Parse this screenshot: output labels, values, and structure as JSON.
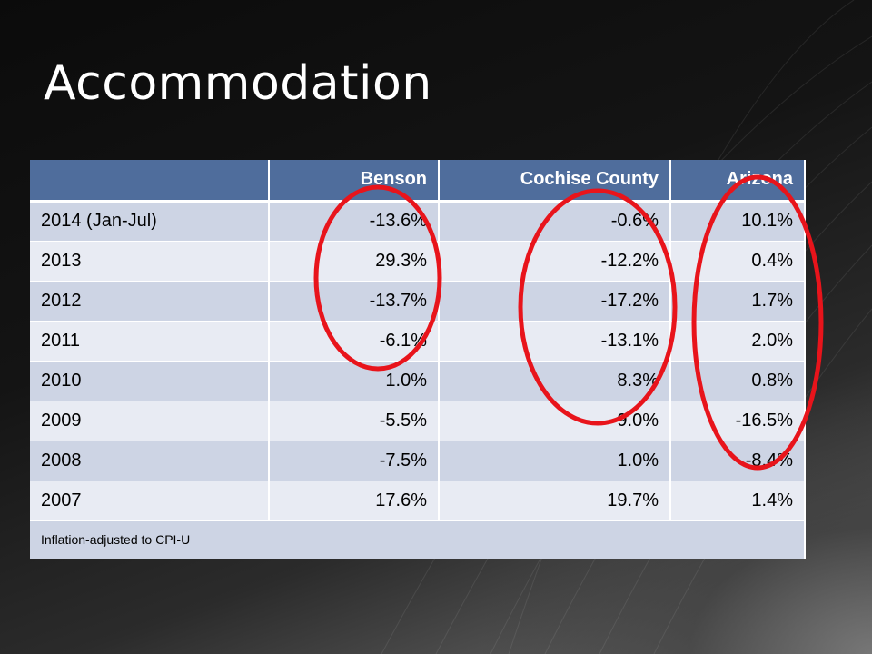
{
  "title": "Accommodation",
  "table": {
    "headers": [
      "",
      "Benson",
      "Cochise County",
      "Arizona"
    ],
    "rows": [
      [
        "2014 (Jan-Jul)",
        "-13.6%",
        "-0.6%",
        "10.1%"
      ],
      [
        "2013",
        "29.3%",
        "-12.2%",
        "0.4%"
      ],
      [
        "2012",
        "-13.7%",
        "-17.2%",
        "1.7%"
      ],
      [
        "2011",
        "-6.1%",
        "-13.1%",
        "2.0%"
      ],
      [
        "2010",
        "1.0%",
        "8.3%",
        "0.8%"
      ],
      [
        "2009",
        "-5.5%",
        "-9.0%",
        "-16.5%"
      ],
      [
        "2008",
        "-7.5%",
        "1.0%",
        "-8.4%"
      ],
      [
        "2007",
        "17.6%",
        "19.7%",
        "1.4%"
      ]
    ],
    "footnote": "Inflation-adjusted to CPI-U"
  },
  "colors": {
    "header_bg": "#4f6d9c",
    "row_dark": "#cdd4e4",
    "row_light": "#e8ebf3",
    "highlight_ring": "#e8141b"
  }
}
